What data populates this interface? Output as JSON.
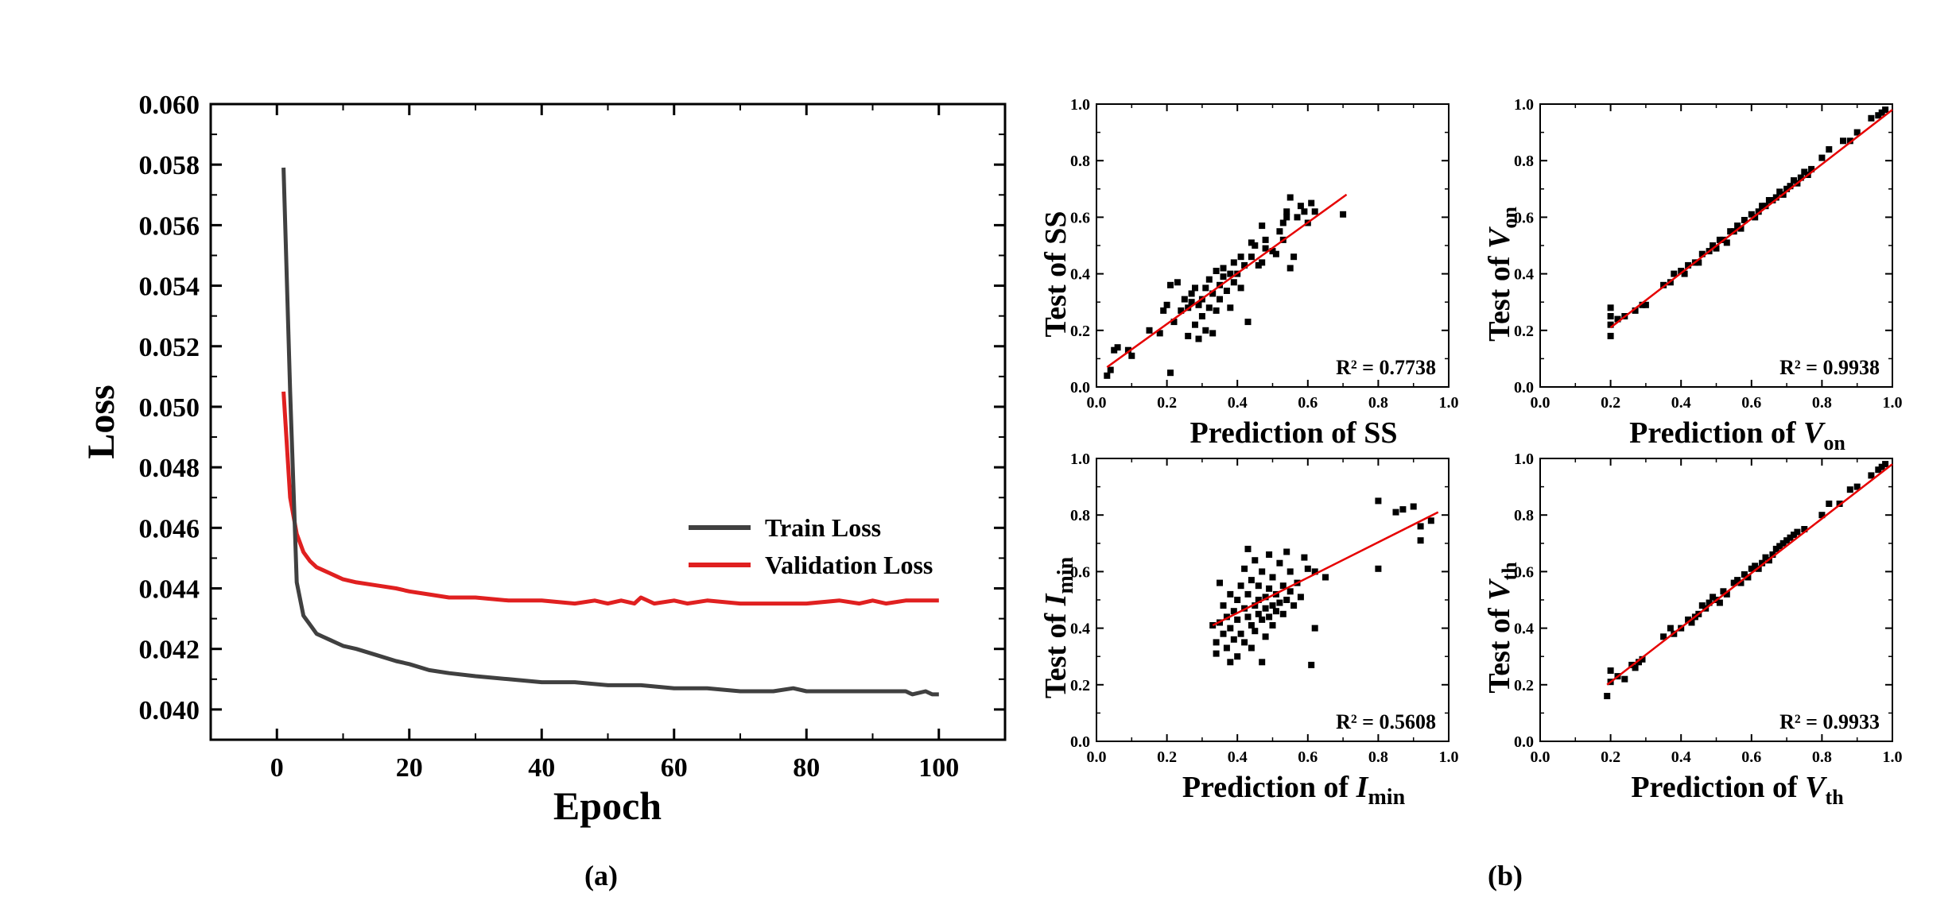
{
  "panel_labels": {
    "a": "(a)",
    "b": "(b)"
  },
  "colors": {
    "train": "#404040",
    "validation": "#e02020",
    "fit": "#e60000",
    "points": "#000000",
    "axes": "#000000"
  },
  "chart_data": [
    {
      "type": "line",
      "xlabel": "Epoch",
      "ylabel": "Loss",
      "xlim": [
        -10,
        110
      ],
      "ylim": [
        0.039,
        0.06
      ],
      "xticks": [
        0,
        20,
        40,
        60,
        80,
        100
      ],
      "yticks": [
        0.04,
        0.042,
        0.044,
        0.046,
        0.048,
        0.05,
        0.052,
        0.054,
        0.056,
        0.058,
        0.06
      ],
      "legend_position": "center-right",
      "series": [
        {
          "name": "Train Loss",
          "color": "#404040",
          "x": [
            1,
            2,
            3,
            4,
            5,
            6,
            7,
            8,
            9,
            10,
            12,
            15,
            18,
            20,
            23,
            26,
            30,
            35,
            40,
            45,
            50,
            55,
            60,
            65,
            70,
            75,
            78,
            80,
            85,
            90,
            95,
            96,
            98,
            99,
            100
          ],
          "values": [
            0.0579,
            0.0505,
            0.0442,
            0.0431,
            0.0428,
            0.0425,
            0.0424,
            0.0423,
            0.0422,
            0.0421,
            0.042,
            0.0418,
            0.0416,
            0.0415,
            0.0413,
            0.0412,
            0.0411,
            0.041,
            0.0409,
            0.0409,
            0.0408,
            0.0408,
            0.0407,
            0.0407,
            0.0406,
            0.0406,
            0.0407,
            0.0406,
            0.0406,
            0.0406,
            0.0406,
            0.0405,
            0.0406,
            0.0405,
            0.0405
          ]
        },
        {
          "name": "Validation Loss",
          "color": "#e02020",
          "x": [
            1,
            2,
            3,
            4,
            5,
            6,
            7,
            8,
            9,
            10,
            12,
            15,
            18,
            20,
            23,
            26,
            30,
            35,
            40,
            45,
            48,
            50,
            52,
            54,
            55,
            57,
            60,
            62,
            65,
            70,
            75,
            80,
            85,
            88,
            90,
            92,
            95,
            97,
            100
          ],
          "values": [
            0.0505,
            0.047,
            0.0458,
            0.0452,
            0.0449,
            0.0447,
            0.0446,
            0.0445,
            0.0444,
            0.0443,
            0.0442,
            0.0441,
            0.044,
            0.0439,
            0.0438,
            0.0437,
            0.0437,
            0.0436,
            0.0436,
            0.0435,
            0.0436,
            0.0435,
            0.0436,
            0.0435,
            0.0437,
            0.0435,
            0.0436,
            0.0435,
            0.0436,
            0.0435,
            0.0435,
            0.0435,
            0.0436,
            0.0435,
            0.0436,
            0.0435,
            0.0436,
            0.0436,
            0.0436
          ]
        }
      ]
    },
    {
      "type": "scatter",
      "xlabel": "Prediction of SS",
      "ylabel": "Test of SS",
      "xlim": [
        0,
        1
      ],
      "ylim": [
        0,
        1
      ],
      "ticks": [
        "0.0",
        "0.2",
        "0.4",
        "0.6",
        "0.8",
        "1.0"
      ],
      "r2_label": "R² = 0.7738",
      "fit_line": {
        "x": [
          0.03,
          0.71
        ],
        "y": [
          0.07,
          0.68
        ]
      },
      "points": [
        [
          0.03,
          0.04
        ],
        [
          0.04,
          0.06
        ],
        [
          0.05,
          0.13
        ],
        [
          0.06,
          0.14
        ],
        [
          0.09,
          0.13
        ],
        [
          0.1,
          0.11
        ],
        [
          0.15,
          0.2
        ],
        [
          0.18,
          0.19
        ],
        [
          0.19,
          0.27
        ],
        [
          0.2,
          0.29
        ],
        [
          0.21,
          0.05
        ],
        [
          0.21,
          0.36
        ],
        [
          0.22,
          0.23
        ],
        [
          0.23,
          0.37
        ],
        [
          0.24,
          0.27
        ],
        [
          0.25,
          0.31
        ],
        [
          0.26,
          0.18
        ],
        [
          0.26,
          0.28
        ],
        [
          0.27,
          0.3
        ],
        [
          0.27,
          0.33
        ],
        [
          0.28,
          0.22
        ],
        [
          0.28,
          0.35
        ],
        [
          0.29,
          0.17
        ],
        [
          0.29,
          0.29
        ],
        [
          0.3,
          0.31
        ],
        [
          0.3,
          0.25
        ],
        [
          0.31,
          0.35
        ],
        [
          0.31,
          0.2
        ],
        [
          0.32,
          0.38
        ],
        [
          0.32,
          0.28
        ],
        [
          0.33,
          0.33
        ],
        [
          0.33,
          0.19
        ],
        [
          0.34,
          0.41
        ],
        [
          0.34,
          0.27
        ],
        [
          0.35,
          0.36
        ],
        [
          0.35,
          0.31
        ],
        [
          0.36,
          0.42
        ],
        [
          0.36,
          0.39
        ],
        [
          0.37,
          0.34
        ],
        [
          0.38,
          0.4
        ],
        [
          0.38,
          0.28
        ],
        [
          0.39,
          0.44
        ],
        [
          0.39,
          0.37
        ],
        [
          0.4,
          0.4
        ],
        [
          0.41,
          0.46
        ],
        [
          0.41,
          0.35
        ],
        [
          0.42,
          0.43
        ],
        [
          0.43,
          0.23
        ],
        [
          0.44,
          0.46
        ],
        [
          0.44,
          0.51
        ],
        [
          0.45,
          0.5
        ],
        [
          0.46,
          0.43
        ],
        [
          0.47,
          0.44
        ],
        [
          0.47,
          0.57
        ],
        [
          0.48,
          0.49
        ],
        [
          0.48,
          0.52
        ],
        [
          0.5,
          0.48
        ],
        [
          0.51,
          0.47
        ],
        [
          0.52,
          0.55
        ],
        [
          0.53,
          0.58
        ],
        [
          0.53,
          0.52
        ],
        [
          0.54,
          0.6
        ],
        [
          0.54,
          0.62
        ],
        [
          0.55,
          0.67
        ],
        [
          0.55,
          0.42
        ],
        [
          0.56,
          0.46
        ],
        [
          0.57,
          0.6
        ],
        [
          0.58,
          0.64
        ],
        [
          0.59,
          0.62
        ],
        [
          0.6,
          0.58
        ],
        [
          0.61,
          0.65
        ],
        [
          0.62,
          0.62
        ],
        [
          0.7,
          0.61
        ]
      ]
    },
    {
      "type": "scatter",
      "xlabel": "Prediction of Von",
      "ylabel": "Test of Von",
      "xlim": [
        0,
        1
      ],
      "ylim": [
        0,
        1
      ],
      "ticks": [
        "0.0",
        "0.2",
        "0.4",
        "0.6",
        "0.8",
        "1.0"
      ],
      "r2_label": "R² = 0.9938",
      "fit_line": {
        "x": [
          0.2,
          1.0
        ],
        "y": [
          0.21,
          0.98
        ]
      },
      "points": [
        [
          0.2,
          0.18
        ],
        [
          0.2,
          0.22
        ],
        [
          0.2,
          0.25
        ],
        [
          0.2,
          0.28
        ],
        [
          0.22,
          0.24
        ],
        [
          0.24,
          0.25
        ],
        [
          0.27,
          0.27
        ],
        [
          0.29,
          0.29
        ],
        [
          0.3,
          0.29
        ],
        [
          0.35,
          0.36
        ],
        [
          0.37,
          0.37
        ],
        [
          0.38,
          0.4
        ],
        [
          0.4,
          0.41
        ],
        [
          0.41,
          0.4
        ],
        [
          0.42,
          0.43
        ],
        [
          0.44,
          0.44
        ],
        [
          0.45,
          0.44
        ],
        [
          0.46,
          0.47
        ],
        [
          0.48,
          0.48
        ],
        [
          0.49,
          0.5
        ],
        [
          0.5,
          0.49
        ],
        [
          0.51,
          0.52
        ],
        [
          0.52,
          0.52
        ],
        [
          0.53,
          0.51
        ],
        [
          0.54,
          0.55
        ],
        [
          0.55,
          0.55
        ],
        [
          0.56,
          0.57
        ],
        [
          0.57,
          0.56
        ],
        [
          0.58,
          0.59
        ],
        [
          0.6,
          0.61
        ],
        [
          0.61,
          0.6
        ],
        [
          0.62,
          0.62
        ],
        [
          0.63,
          0.64
        ],
        [
          0.64,
          0.64
        ],
        [
          0.65,
          0.66
        ],
        [
          0.66,
          0.66
        ],
        [
          0.67,
          0.67
        ],
        [
          0.68,
          0.69
        ],
        [
          0.69,
          0.68
        ],
        [
          0.7,
          0.7
        ],
        [
          0.71,
          0.71
        ],
        [
          0.72,
          0.73
        ],
        [
          0.73,
          0.72
        ],
        [
          0.74,
          0.74
        ],
        [
          0.75,
          0.76
        ],
        [
          0.76,
          0.75
        ],
        [
          0.77,
          0.77
        ],
        [
          0.8,
          0.81
        ],
        [
          0.82,
          0.84
        ],
        [
          0.86,
          0.87
        ],
        [
          0.88,
          0.87
        ],
        [
          0.9,
          0.9
        ],
        [
          0.94,
          0.95
        ],
        [
          0.96,
          0.96
        ],
        [
          0.97,
          0.97
        ],
        [
          0.98,
          0.98
        ]
      ]
    },
    {
      "type": "scatter",
      "xlabel": "Prediction of Imin",
      "ylabel": "Test of Imin",
      "xlim": [
        0,
        1
      ],
      "ylim": [
        0,
        1
      ],
      "ticks": [
        "0.0",
        "0.2",
        "0.4",
        "0.6",
        "0.8",
        "1.0"
      ],
      "r2_label": "R² = 0.5608",
      "fit_line": {
        "x": [
          0.33,
          0.97
        ],
        "y": [
          0.41,
          0.81
        ]
      },
      "points": [
        [
          0.33,
          0.41
        ],
        [
          0.34,
          0.31
        ],
        [
          0.34,
          0.35
        ],
        [
          0.35,
          0.42
        ],
        [
          0.35,
          0.56
        ],
        [
          0.36,
          0.38
        ],
        [
          0.36,
          0.48
        ],
        [
          0.37,
          0.33
        ],
        [
          0.37,
          0.44
        ],
        [
          0.38,
          0.4
        ],
        [
          0.38,
          0.52
        ],
        [
          0.38,
          0.28
        ],
        [
          0.39,
          0.46
        ],
        [
          0.39,
          0.36
        ],
        [
          0.4,
          0.43
        ],
        [
          0.4,
          0.5
        ],
        [
          0.4,
          0.3
        ],
        [
          0.41,
          0.55
        ],
        [
          0.41,
          0.38
        ],
        [
          0.42,
          0.47
        ],
        [
          0.42,
          0.61
        ],
        [
          0.42,
          0.35
        ],
        [
          0.43,
          0.44
        ],
        [
          0.43,
          0.52
        ],
        [
          0.43,
          0.68
        ],
        [
          0.44,
          0.41
        ],
        [
          0.44,
          0.57
        ],
        [
          0.44,
          0.33
        ],
        [
          0.45,
          0.48
        ],
        [
          0.45,
          0.64
        ],
        [
          0.45,
          0.39
        ],
        [
          0.46,
          0.45
        ],
        [
          0.46,
          0.55
        ],
        [
          0.46,
          0.5
        ],
        [
          0.47,
          0.28
        ],
        [
          0.47,
          0.43
        ],
        [
          0.47,
          0.6
        ],
        [
          0.48,
          0.51
        ],
        [
          0.48,
          0.47
        ],
        [
          0.48,
          0.37
        ],
        [
          0.49,
          0.54
        ],
        [
          0.49,
          0.44
        ],
        [
          0.49,
          0.66
        ],
        [
          0.5,
          0.48
        ],
        [
          0.5,
          0.58
        ],
        [
          0.5,
          0.41
        ],
        [
          0.51,
          0.52
        ],
        [
          0.51,
          0.46
        ],
        [
          0.52,
          0.63
        ],
        [
          0.52,
          0.49
        ],
        [
          0.53,
          0.55
        ],
        [
          0.53,
          0.45
        ],
        [
          0.54,
          0.67
        ],
        [
          0.54,
          0.5
        ],
        [
          0.55,
          0.53
        ],
        [
          0.55,
          0.6
        ],
        [
          0.56,
          0.48
        ],
        [
          0.57,
          0.56
        ],
        [
          0.58,
          0.51
        ],
        [
          0.59,
          0.65
        ],
        [
          0.6,
          0.61
        ],
        [
          0.61,
          0.27
        ],
        [
          0.62,
          0.4
        ],
        [
          0.62,
          0.6
        ],
        [
          0.65,
          0.58
        ],
        [
          0.8,
          0.61
        ],
        [
          0.8,
          0.85
        ],
        [
          0.85,
          0.81
        ],
        [
          0.87,
          0.82
        ],
        [
          0.9,
          0.83
        ],
        [
          0.92,
          0.76
        ],
        [
          0.92,
          0.71
        ],
        [
          0.95,
          0.78
        ]
      ]
    },
    {
      "type": "scatter",
      "xlabel": "Prediction of Vth",
      "ylabel": "Test of Vth",
      "xlim": [
        0,
        1
      ],
      "ylim": [
        0,
        1
      ],
      "ticks": [
        "0.0",
        "0.2",
        "0.4",
        "0.6",
        "0.8",
        "1.0"
      ],
      "r2_label": "R² = 0.9933",
      "fit_line": {
        "x": [
          0.19,
          1.0
        ],
        "y": [
          0.2,
          0.98
        ]
      },
      "points": [
        [
          0.19,
          0.16
        ],
        [
          0.2,
          0.21
        ],
        [
          0.2,
          0.25
        ],
        [
          0.22,
          0.23
        ],
        [
          0.24,
          0.22
        ],
        [
          0.26,
          0.27
        ],
        [
          0.27,
          0.26
        ],
        [
          0.28,
          0.28
        ],
        [
          0.29,
          0.29
        ],
        [
          0.35,
          0.37
        ],
        [
          0.37,
          0.4
        ],
        [
          0.38,
          0.38
        ],
        [
          0.4,
          0.4
        ],
        [
          0.42,
          0.43
        ],
        [
          0.43,
          0.42
        ],
        [
          0.44,
          0.44
        ],
        [
          0.45,
          0.45
        ],
        [
          0.46,
          0.48
        ],
        [
          0.47,
          0.47
        ],
        [
          0.48,
          0.49
        ],
        [
          0.49,
          0.51
        ],
        [
          0.5,
          0.5
        ],
        [
          0.51,
          0.49
        ],
        [
          0.52,
          0.53
        ],
        [
          0.53,
          0.52
        ],
        [
          0.55,
          0.56
        ],
        [
          0.56,
          0.57
        ],
        [
          0.57,
          0.56
        ],
        [
          0.58,
          0.59
        ],
        [
          0.59,
          0.58
        ],
        [
          0.6,
          0.61
        ],
        [
          0.61,
          0.62
        ],
        [
          0.62,
          0.61
        ],
        [
          0.63,
          0.63
        ],
        [
          0.64,
          0.65
        ],
        [
          0.65,
          0.64
        ],
        [
          0.66,
          0.66
        ],
        [
          0.67,
          0.68
        ],
        [
          0.68,
          0.69
        ],
        [
          0.69,
          0.7
        ],
        [
          0.7,
          0.71
        ],
        [
          0.71,
          0.72
        ],
        [
          0.72,
          0.73
        ],
        [
          0.73,
          0.74
        ],
        [
          0.75,
          0.75
        ],
        [
          0.8,
          0.8
        ],
        [
          0.82,
          0.84
        ],
        [
          0.85,
          0.84
        ],
        [
          0.88,
          0.89
        ],
        [
          0.9,
          0.9
        ],
        [
          0.94,
          0.94
        ],
        [
          0.96,
          0.96
        ],
        [
          0.97,
          0.97
        ],
        [
          0.98,
          0.98
        ]
      ]
    }
  ]
}
